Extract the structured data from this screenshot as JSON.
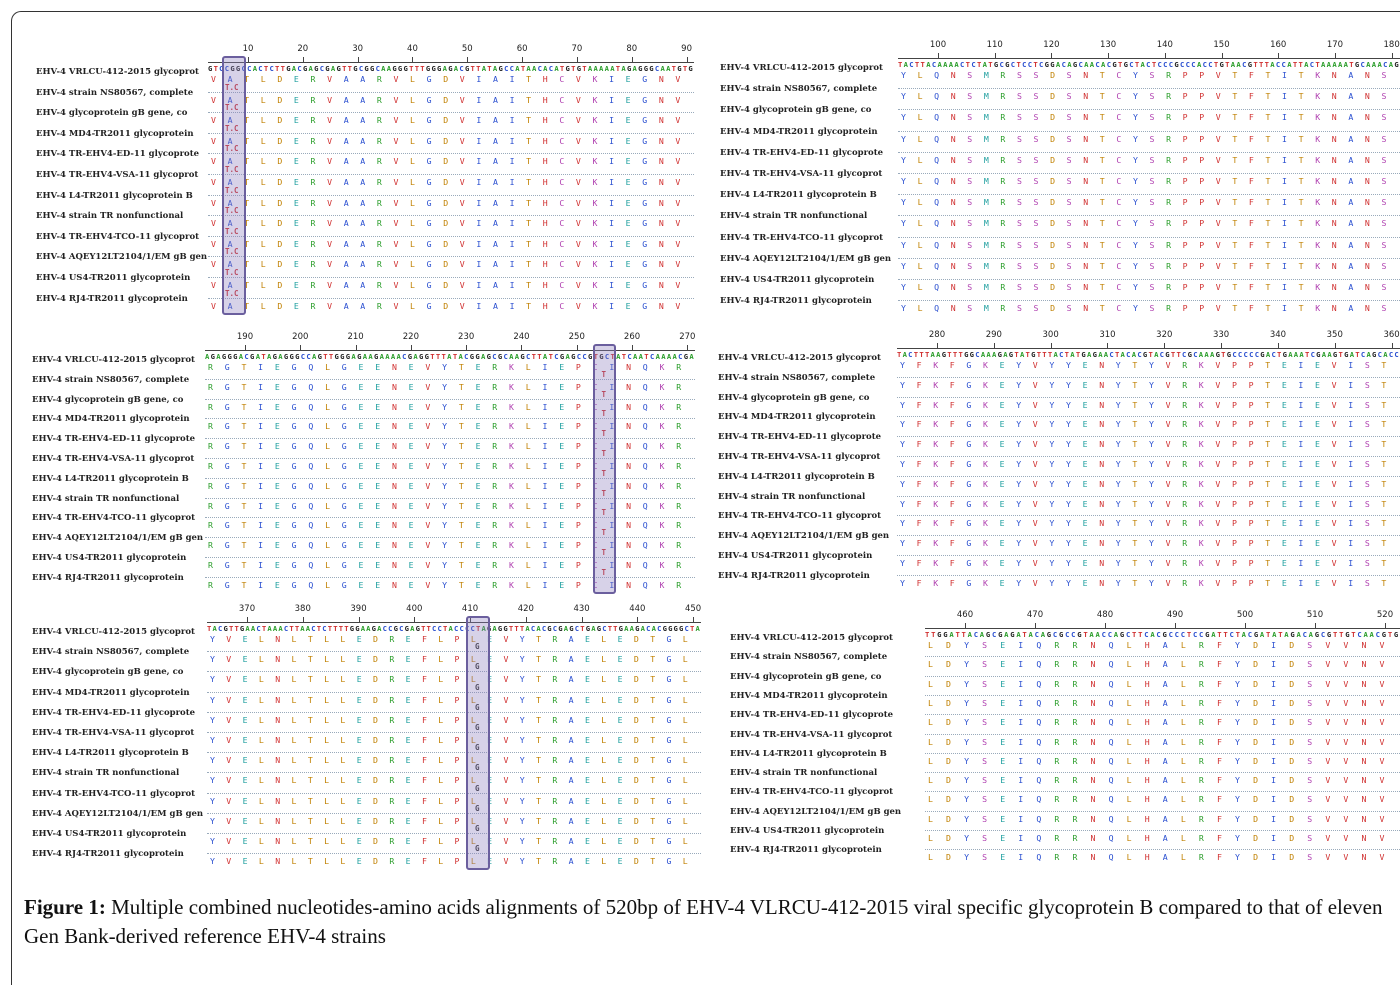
{
  "strains": [
    "EHV-4 VRLCU-412-2015 glycoprot",
    "EHV-4 strain NS80567, complete",
    "EHV-4 glycoprotein gB gene, co",
    "EHV-4 MD4-TR2011 glycoprotein",
    "EHV-4 TR-EHV4-ED-11 glycoprote",
    "EHV-4 TR-EHV4-VSA-11 glycoprot",
    "EHV-4 L4-TR2011 glycoprotein B",
    "EHV-4 strain TR nonfunctional",
    "EHV-4 TR-EHV4-TCO-11 glycoprot",
    "EHV-4 AQEY12LT2104/1/EM gB gen",
    "EHV-4 US4-TR2011 glycoprotein",
    "EHV-4 RJ4-TR2011 glycoprotein"
  ],
  "panels": [
    {
      "id": "p1",
      "ticks": [
        "10",
        "20",
        "30",
        "40",
        "50",
        "60",
        "70",
        "80",
        "90"
      ],
      "nt": "GTCCGGCCACTCTTGACGAGCGAGTTGCGGCAAGGGTTTGGGAGACGTTATAGCCATAACACATGTGTAAAAATAGAGGGCAATGTG",
      "aa": "V  A T L D E R V A A R V L G D V I A I T H C V K I E G N V",
      "mut": "T.C"
    },
    {
      "id": "p2",
      "ticks": [
        "100",
        "110",
        "120",
        "130",
        "140",
        "150",
        "160",
        "170",
        "180"
      ],
      "nt": "TACTTACAAAACTCTATGCGCTCCTCGGACAGCAACACGTGCTACTCCCGCCCACCTGTAACGTTTACCATTACTAAAAATGCAAACAG",
      "aa": "Y L Q N S M R S S D S N T C Y S R P P V T F T I T K N A N S",
      "mut": ""
    },
    {
      "id": "p3",
      "ticks": [
        "190",
        "200",
        "210",
        "220",
        "230",
        "240",
        "250",
        "260",
        "270"
      ],
      "nt": "AGAGGGACGATAGAGGGCCAGTTGGGAGAAGAAAACGAGGTTTATACGGAGCGCAAGCTTATCGAGCCGTGCTATCAATCAAAACGA",
      "aa": "R G T I E G Q L G E E N E V Y T E R K L I E P C  I N Q K R",
      "mut": "T"
    },
    {
      "id": "p4",
      "ticks": [
        "280",
        "290",
        "300",
        "310",
        "320",
        "330",
        "340",
        "350",
        "360"
      ],
      "nt": "TACTTTAAGTTTGGCAAAGAGTATGTTTACTATGAGAACTACACGTACGTTCGCAAAGTGCCCCCGACTGAAATCGAAGTGATCAGCACC",
      "aa": "Y F K F G K E Y V Y Y E N Y T Y V R K V P P T E I E V I S T",
      "mut": ""
    },
    {
      "id": "p5",
      "ticks": [
        "370",
        "380",
        "390",
        "400",
        "410",
        "420",
        "430",
        "440",
        "450"
      ],
      "nt": "TACGTTGAACTAAACTTAACTCTTTTGGAAGACCGCGAGTTCCTACCCCTAGAGGTTTACACGCGAGCTGAGCTTGAAGACACGGGGCTA",
      "aa": "Y V E L N L T L L E D R E F L P L E V Y T R A E L E D T G L",
      "mut": "G"
    },
    {
      "id": "p6",
      "ticks": [
        "460",
        "470",
        "480",
        "490",
        "500",
        "510",
        "520"
      ],
      "nt": "TTGGATTACAGCGAGATACAGCGCCGTAACCAGCTTCACGCCCTCCGATTCTACGATATAGACAGCGTTGTCAACGTG",
      "aa": "L D Y S E I Q R R N Q L H A L R F Y D I D S V V N V",
      "mut": ""
    }
  ],
  "caption": {
    "label": "Figure 1:",
    "text": " Multiple combined nucleotides-amino acids alignments of 520bp of EHV-4 VLRCU-412-2015 viral specific glycoprotein B compared to that of eleven Gen Bank-derived reference EHV-4 strains"
  }
}
